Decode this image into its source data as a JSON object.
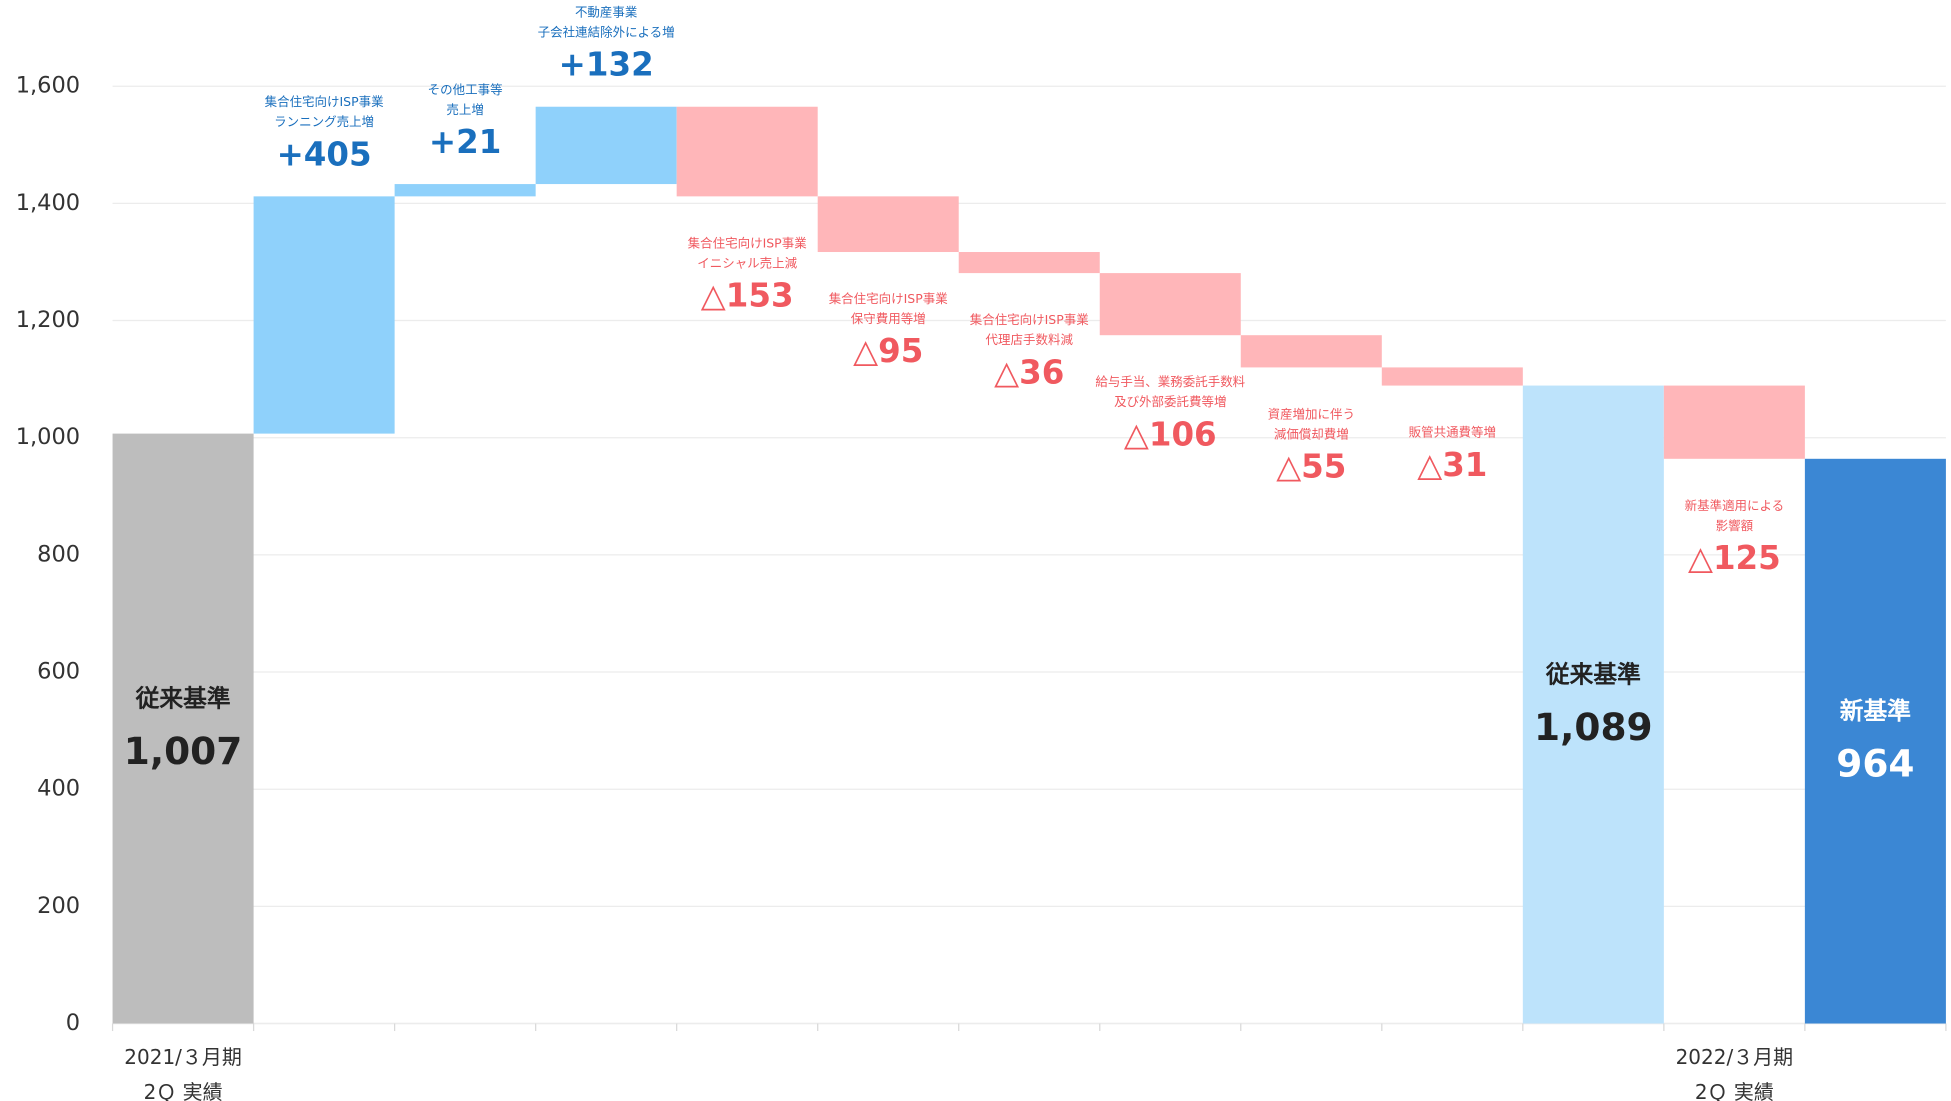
{
  "chart_data": {
    "type": "waterfall",
    "categories": [
      [
        "2021/３月期",
        "2Ｑ 実績"
      ],
      null,
      null,
      null,
      null,
      null,
      null,
      null,
      null,
      null,
      null,
      [
        "2022/３月期",
        "2Ｑ 実績"
      ],
      null
    ],
    "measures": [
      "total",
      "relative",
      "relative",
      "relative",
      "relative",
      "relative",
      "relative",
      "relative",
      "relative",
      "relative",
      "total",
      "relative",
      "total"
    ],
    "values": [
      1007,
      405,
      21,
      132,
      -153,
      -95,
      -36,
      -106,
      -55,
      -31,
      1089,
      -125,
      964
    ],
    "value_labels": [
      "1,007",
      "+405",
      "+21",
      "+132",
      "△153",
      "△95",
      "△36",
      "△106",
      "△55",
      "△31",
      "1,089",
      "△125",
      "964"
    ],
    "bar_names": [
      "従来基準",
      null,
      null,
      null,
      null,
      null,
      null,
      null,
      null,
      null,
      "従来基準",
      null,
      "新基準"
    ],
    "notes": [
      null,
      [
        "集合住宅向けISP事業",
        "ランニング売上増"
      ],
      [
        "その他工事等",
        "売上増"
      ],
      [
        "不動産事業",
        "子会社連結除外による増"
      ],
      [
        "集合住宅向けISP事業",
        "イニシャル売上減"
      ],
      [
        "集合住宅向けISP事業",
        "保守費用等増"
      ],
      [
        "集合住宅向けISP事業",
        "代理店手数料減"
      ],
      [
        "給与手当、業務委託手数料",
        "及び外部委託費等増"
      ],
      [
        "資産増加に伴う",
        "減価償却費増"
      ],
      [
        "販管共通費等増"
      ],
      null,
      [
        "新基準適用による",
        "影響額"
      ],
      null
    ],
    "colors": [
      "#bdbdbd",
      "#8fd1fb",
      "#8fd1fb",
      "#8fd1fb",
      "#ffb6b9",
      "#ffb6b9",
      "#ffb6b9",
      "#ffb6b9",
      "#ffb6b9",
      "#ffb6b9",
      "#bde3fb",
      "#ffb6b9",
      "#3b87d4"
    ],
    "increase_label_color": "#1a6fbd",
    "decrease_label_color": "#f0595f",
    "ylim": [
      0,
      1600
    ],
    "yticks": [
      0,
      200,
      400,
      600,
      800,
      {
        "value": 1000,
        "label": "1,000"
      },
      {
        "value": 1200,
        "label": "1,200"
      },
      {
        "value": 1400,
        "label": "1,400"
      },
      {
        "value": 1600,
        "label": "1,600"
      }
    ],
    "grid": true
  }
}
